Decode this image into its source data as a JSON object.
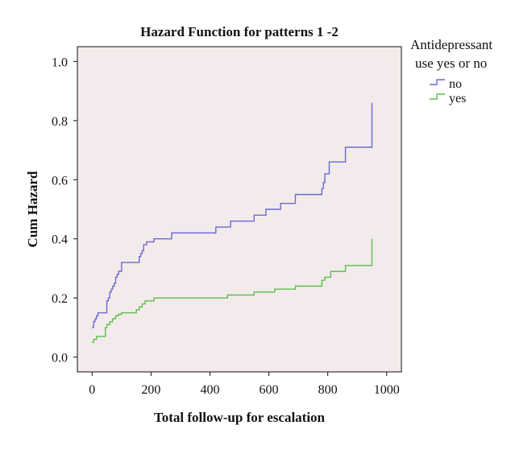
{
  "chart_data": {
    "type": "line",
    "step": true,
    "title": "Hazard Function for patterns 1 -2",
    "xlabel": "Total follow-up for escalation",
    "ylabel": "Cum Hazard",
    "xlim": [
      -50,
      1050
    ],
    "ylim": [
      -0.05,
      1.05
    ],
    "xticks": [
      0,
      200,
      400,
      600,
      800,
      1000
    ],
    "xtick_labels": [
      "0",
      "200",
      "400",
      "600",
      "800",
      "1000"
    ],
    "yticks": [
      0.0,
      0.2,
      0.4,
      0.6,
      0.8,
      1.0
    ],
    "ytick_labels": [
      "0.0",
      "0.2",
      "0.4",
      "0.6",
      "0.8",
      "1.0"
    ],
    "plot_background": "#f3ebeb",
    "grid": false,
    "legend": {
      "title_lines": [
        "Antidepressant",
        "use yes or no"
      ],
      "placement": "outside-right-top"
    },
    "series": [
      {
        "name": "no",
        "color": "#6a6ad2",
        "x": [
          0,
          5,
          10,
          15,
          20,
          50,
          55,
          60,
          65,
          70,
          75,
          80,
          85,
          90,
          100,
          160,
          165,
          170,
          175,
          185,
          210,
          270,
          420,
          470,
          550,
          590,
          640,
          690,
          780,
          785,
          790,
          805,
          860,
          950,
          950
        ],
        "y": [
          0.1,
          0.12,
          0.13,
          0.14,
          0.15,
          0.19,
          0.2,
          0.22,
          0.23,
          0.24,
          0.25,
          0.27,
          0.28,
          0.29,
          0.32,
          0.34,
          0.35,
          0.36,
          0.38,
          0.39,
          0.4,
          0.42,
          0.44,
          0.46,
          0.48,
          0.5,
          0.52,
          0.55,
          0.57,
          0.59,
          0.62,
          0.66,
          0.71,
          0.71,
          0.86
        ]
      },
      {
        "name": "yes",
        "color": "#5dbd4e",
        "x": [
          0,
          5,
          15,
          45,
          50,
          60,
          70,
          80,
          90,
          100,
          150,
          160,
          170,
          180,
          210,
          270,
          460,
          550,
          620,
          690,
          780,
          790,
          810,
          860,
          950,
          950
        ],
        "y": [
          0.05,
          0.06,
          0.07,
          0.1,
          0.11,
          0.12,
          0.13,
          0.14,
          0.145,
          0.15,
          0.16,
          0.17,
          0.18,
          0.19,
          0.2,
          0.2,
          0.21,
          0.22,
          0.23,
          0.24,
          0.26,
          0.27,
          0.29,
          0.31,
          0.33,
          0.4
        ]
      }
    ]
  }
}
